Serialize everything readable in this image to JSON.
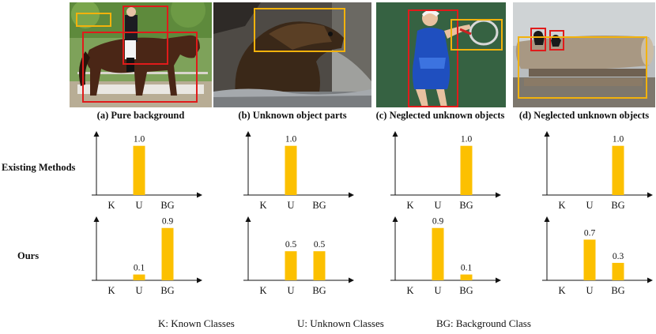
{
  "panels": [
    {
      "caption": "(a) Pure background"
    },
    {
      "caption": "(b) Unknown object parts"
    },
    {
      "caption": "(c) Neglected unknown objects"
    },
    {
      "caption": "(d) Neglected unknown objects"
    }
  ],
  "row_labels": {
    "existing": "Existing Methods",
    "ours": "Ours"
  },
  "legend": {
    "k": "K: Known Classes",
    "u": "U: Unknown Classes",
    "bg": "BG: Background Class"
  },
  "colors": {
    "bar": "#fcc000",
    "red_box": "#e01b1b",
    "yellow_box": "#f2b20c"
  },
  "chart_data": [
    {
      "type": "bar",
      "row": "Existing Methods",
      "panel": "a",
      "categories": [
        "K",
        "U",
        "BG"
      ],
      "values": [
        null,
        1.0,
        null
      ],
      "labels": [
        "",
        "1.0",
        ""
      ],
      "ylim": [
        0,
        1.3
      ]
    },
    {
      "type": "bar",
      "row": "Existing Methods",
      "panel": "b",
      "categories": [
        "K",
        "U",
        "BG"
      ],
      "values": [
        null,
        1.0,
        null
      ],
      "labels": [
        "",
        "1.0",
        ""
      ],
      "ylim": [
        0,
        1.3
      ]
    },
    {
      "type": "bar",
      "row": "Existing Methods",
      "panel": "c",
      "categories": [
        "K",
        "U",
        "BG"
      ],
      "values": [
        null,
        null,
        1.0
      ],
      "labels": [
        "",
        "",
        "1.0"
      ],
      "ylim": [
        0,
        1.3
      ]
    },
    {
      "type": "bar",
      "row": "Existing Methods",
      "panel": "d",
      "categories": [
        "K",
        "U",
        "BG"
      ],
      "values": [
        null,
        null,
        1.0
      ],
      "labels": [
        "",
        "",
        "1.0"
      ],
      "ylim": [
        0,
        1.3
      ]
    },
    {
      "type": "bar",
      "row": "Ours",
      "panel": "a",
      "categories": [
        "K",
        "U",
        "BG"
      ],
      "values": [
        null,
        0.1,
        0.9
      ],
      "labels": [
        "",
        "0.1",
        "0.9"
      ],
      "ylim": [
        0,
        1.1
      ]
    },
    {
      "type": "bar",
      "row": "Ours",
      "panel": "b",
      "categories": [
        "K",
        "U",
        "BG"
      ],
      "values": [
        null,
        0.5,
        0.5
      ],
      "labels": [
        "",
        "0.5",
        "0.5"
      ],
      "ylim": [
        0,
        1.1
      ]
    },
    {
      "type": "bar",
      "row": "Ours",
      "panel": "c",
      "categories": [
        "K",
        "U",
        "BG"
      ],
      "values": [
        null,
        0.9,
        0.1
      ],
      "labels": [
        "",
        "0.9",
        "0.1"
      ],
      "ylim": [
        0,
        1.1
      ]
    },
    {
      "type": "bar",
      "row": "Ours",
      "panel": "d",
      "categories": [
        "K",
        "U",
        "BG"
      ],
      "values": [
        null,
        0.7,
        0.3
      ],
      "labels": [
        "",
        "0.7",
        "0.3"
      ],
      "ylim": [
        0,
        1.1
      ]
    }
  ]
}
